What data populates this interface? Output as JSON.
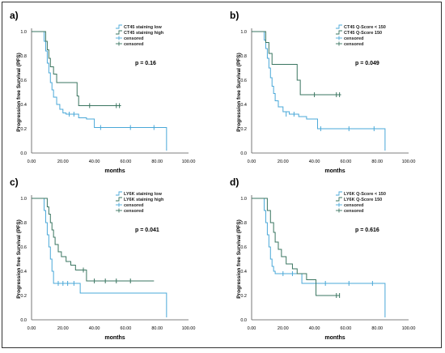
{
  "chart_data": [
    {
      "type": "line",
      "panel_label": "a)",
      "xlabel": "months",
      "ylabel": "Progression free Survival (PFS)",
      "xlim": [
        0,
        100
      ],
      "ylim": [
        0,
        1.0
      ],
      "x_ticks": [
        "0.00",
        "20.00",
        "40.00",
        "60.00",
        "80.00",
        "100.00"
      ],
      "y_ticks": [
        "0.0",
        "0.2",
        "0.4",
        "0.6",
        "0.8",
        "1.0"
      ],
      "annotation": "p = 0.16",
      "legend": [
        "CT45 staining low",
        "CT45 staining high",
        "censored",
        "censored"
      ],
      "series": [
        {
          "name": "CT45 staining low",
          "color": "#4aa8d8",
          "x": [
            0,
            6,
            8,
            9,
            10,
            11,
            12,
            13,
            14,
            16,
            18,
            20,
            22,
            25,
            30,
            35,
            40,
            86,
            86
          ],
          "y": [
            1.0,
            1.0,
            0.92,
            0.84,
            0.74,
            0.66,
            0.58,
            0.52,
            0.46,
            0.4,
            0.36,
            0.33,
            0.32,
            0.32,
            0.29,
            0.28,
            0.21,
            0.21,
            0.02
          ],
          "censored_x": [
            24,
            27,
            44,
            63,
            78
          ],
          "censored_y": [
            0.32,
            0.32,
            0.21,
            0.21,
            0.21
          ]
        },
        {
          "name": "CT45 staining high",
          "color": "#3a7560",
          "x": [
            0,
            7,
            9,
            10,
            11,
            12,
            14,
            16,
            18,
            28,
            29,
            30,
            57
          ],
          "y": [
            1.0,
            1.0,
            0.92,
            0.85,
            0.78,
            0.71,
            0.65,
            0.58,
            0.58,
            0.58,
            0.47,
            0.39,
            0.39
          ],
          "censored_x": [
            37,
            54,
            56
          ],
          "censored_y": [
            0.39,
            0.39,
            0.39
          ]
        }
      ]
    },
    {
      "type": "line",
      "panel_label": "b)",
      "xlabel": "months",
      "ylabel": "Progression free Survival (PFS)",
      "xlim": [
        0,
        100
      ],
      "ylim": [
        0,
        1.0
      ],
      "x_ticks": [
        "0.00",
        "20.00",
        "40.00",
        "60.00",
        "80.00",
        "100.00"
      ],
      "y_ticks": [
        "0.0",
        "0.2",
        "0.4",
        "0.6",
        "0.8",
        "1.0"
      ],
      "annotation": "p = 0.049",
      "legend": [
        "CT45 Q-Score < 150",
        "CT45 Q-Score  150",
        "censored",
        "censored"
      ],
      "series": [
        {
          "name": "CT45 Q-Score < 150",
          "color": "#4aa8d8",
          "x": [
            0,
            6,
            8,
            9,
            10,
            11,
            12,
            13,
            14,
            15,
            17,
            20,
            24,
            30,
            35,
            42,
            85,
            85
          ],
          "y": [
            1.0,
            1.0,
            0.93,
            0.86,
            0.78,
            0.7,
            0.62,
            0.55,
            0.49,
            0.43,
            0.38,
            0.34,
            0.32,
            0.3,
            0.28,
            0.2,
            0.2,
            0.02
          ],
          "censored_x": [
            22,
            27,
            44,
            62,
            78
          ],
          "censored_y": [
            0.32,
            0.32,
            0.2,
            0.2,
            0.2
          ]
        },
        {
          "name": "CT45 Q-Score  150",
          "color": "#3a7560",
          "x": [
            0,
            7,
            9,
            11,
            13,
            15,
            28,
            29,
            31,
            57
          ],
          "y": [
            1.0,
            1.0,
            0.91,
            0.82,
            0.73,
            0.73,
            0.73,
            0.6,
            0.48,
            0.48
          ],
          "censored_x": [
            40,
            54,
            56
          ],
          "censored_y": [
            0.48,
            0.48,
            0.48
          ]
        }
      ]
    },
    {
      "type": "line",
      "panel_label": "c)",
      "xlabel": "months",
      "ylabel": "Progression free Survival (PFS)",
      "xlim": [
        0,
        100
      ],
      "ylim": [
        0,
        1.0
      ],
      "x_ticks": [
        "0.00",
        "20.00",
        "40.00",
        "60.00",
        "80.00",
        "100.00"
      ],
      "y_ticks": [
        "0.0",
        "0.2",
        "0.4",
        "0.6",
        "0.8",
        "1.0"
      ],
      "annotation": "p = 0.041",
      "legend": [
        "LY6K staining low",
        "LY6K staining high",
        "censored",
        "censored"
      ],
      "series": [
        {
          "name": "LY6K staining low",
          "color": "#4aa8d8",
          "x": [
            0,
            7,
            8,
            9,
            10,
            11,
            12,
            13,
            14,
            30,
            31,
            86,
            86
          ],
          "y": [
            1.0,
            1.0,
            0.9,
            0.8,
            0.7,
            0.6,
            0.5,
            0.4,
            0.3,
            0.3,
            0.22,
            0.22,
            0.02
          ],
          "censored_x": [
            17,
            20,
            23,
            27
          ],
          "censored_y": [
            0.3,
            0.3,
            0.3,
            0.3
          ]
        },
        {
          "name": "LY6K staining high",
          "color": "#3a7560",
          "x": [
            0,
            9,
            10,
            11,
            12,
            13,
            14,
            15,
            17,
            19,
            22,
            25,
            28,
            32,
            35,
            78
          ],
          "y": [
            1.0,
            1.0,
            0.93,
            0.87,
            0.8,
            0.74,
            0.68,
            0.62,
            0.56,
            0.52,
            0.48,
            0.45,
            0.41,
            0.41,
            0.32,
            0.32
          ],
          "censored_x": [
            33,
            40,
            47,
            54,
            63
          ],
          "censored_y": [
            0.41,
            0.32,
            0.32,
            0.32,
            0.32
          ]
        }
      ]
    },
    {
      "type": "line",
      "panel_label": "d)",
      "xlabel": "months",
      "ylabel": "Progression free Survival (PFS)",
      "xlim": [
        0,
        100
      ],
      "ylim": [
        0,
        1.0
      ],
      "x_ticks": [
        "0.00",
        "20.00",
        "40.00",
        "60.00",
        "80.00",
        "100.00"
      ],
      "y_ticks": [
        "0.0",
        "0.2",
        "0.4",
        "0.6",
        "0.8",
        "1.0"
      ],
      "annotation": "p = 0.616",
      "legend": [
        "LY6K Q-Score < 150",
        "LY6K Q-Score  150",
        "censored",
        "censored"
      ],
      "series": [
        {
          "name": "LY6K Q-Score < 150",
          "color": "#4aa8d8",
          "x": [
            0,
            6,
            8,
            9,
            10,
            11,
            12,
            13,
            14,
            15,
            32,
            85,
            85
          ],
          "y": [
            1.0,
            1.0,
            0.9,
            0.8,
            0.7,
            0.6,
            0.5,
            0.44,
            0.4,
            0.38,
            0.3,
            0.3,
            0.02
          ],
          "censored_x": [
            20,
            26,
            47,
            62,
            77
          ],
          "censored_y": [
            0.38,
            0.38,
            0.3,
            0.3,
            0.3
          ]
        },
        {
          "name": "LY6K Q-Score  150",
          "color": "#3a7560",
          "x": [
            0,
            9,
            10,
            12,
            14,
            15,
            17,
            19,
            22,
            26,
            29,
            35,
            40,
            41,
            56
          ],
          "y": [
            1.0,
            1.0,
            0.9,
            0.8,
            0.72,
            0.64,
            0.58,
            0.52,
            0.46,
            0.42,
            0.38,
            0.33,
            0.33,
            0.2,
            0.2
          ],
          "censored_x": [
            54,
            56
          ],
          "censored_y": [
            0.2,
            0.2
          ]
        }
      ]
    }
  ]
}
